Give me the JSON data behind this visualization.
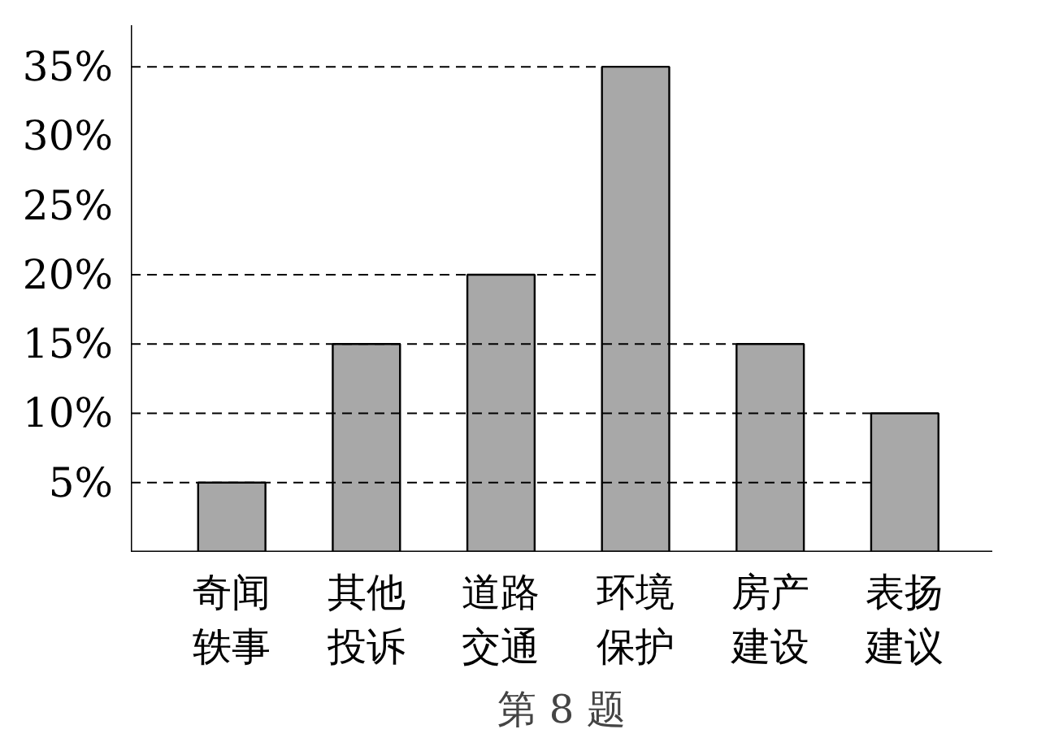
{
  "chart_data": {
    "type": "bar",
    "title": "第 8 题",
    "categories": [
      "奇闻轶事",
      "其他投诉",
      "道路交通",
      "环境保护",
      "房产建设",
      "表扬建议"
    ],
    "values": [
      5,
      15,
      20,
      35,
      15,
      10
    ],
    "color": "#a8a8a8",
    "ylim": [
      0,
      38
    ],
    "yticks": [
      {
        "value": 5,
        "label": "5%"
      },
      {
        "value": 10,
        "label": "10%"
      },
      {
        "value": 15,
        "label": "15%"
      },
      {
        "value": 20,
        "label": "20%"
      },
      {
        "value": 25,
        "label": "25%"
      },
      {
        "value": 30,
        "label": "30%"
      },
      {
        "value": 35,
        "label": "35%"
      }
    ],
    "ref_lines": [
      {
        "axis": "y",
        "value": 35,
        "line_style": "dashed"
      },
      {
        "axis": "y",
        "value": 20,
        "line_style": "dashed"
      },
      {
        "axis": "y",
        "value": 15,
        "line_style": "dashed"
      },
      {
        "axis": "y",
        "value": 10,
        "line_style": "dashed"
      },
      {
        "axis": "y",
        "value": 5,
        "line_style": "dashed"
      }
    ],
    "grid": false
  }
}
